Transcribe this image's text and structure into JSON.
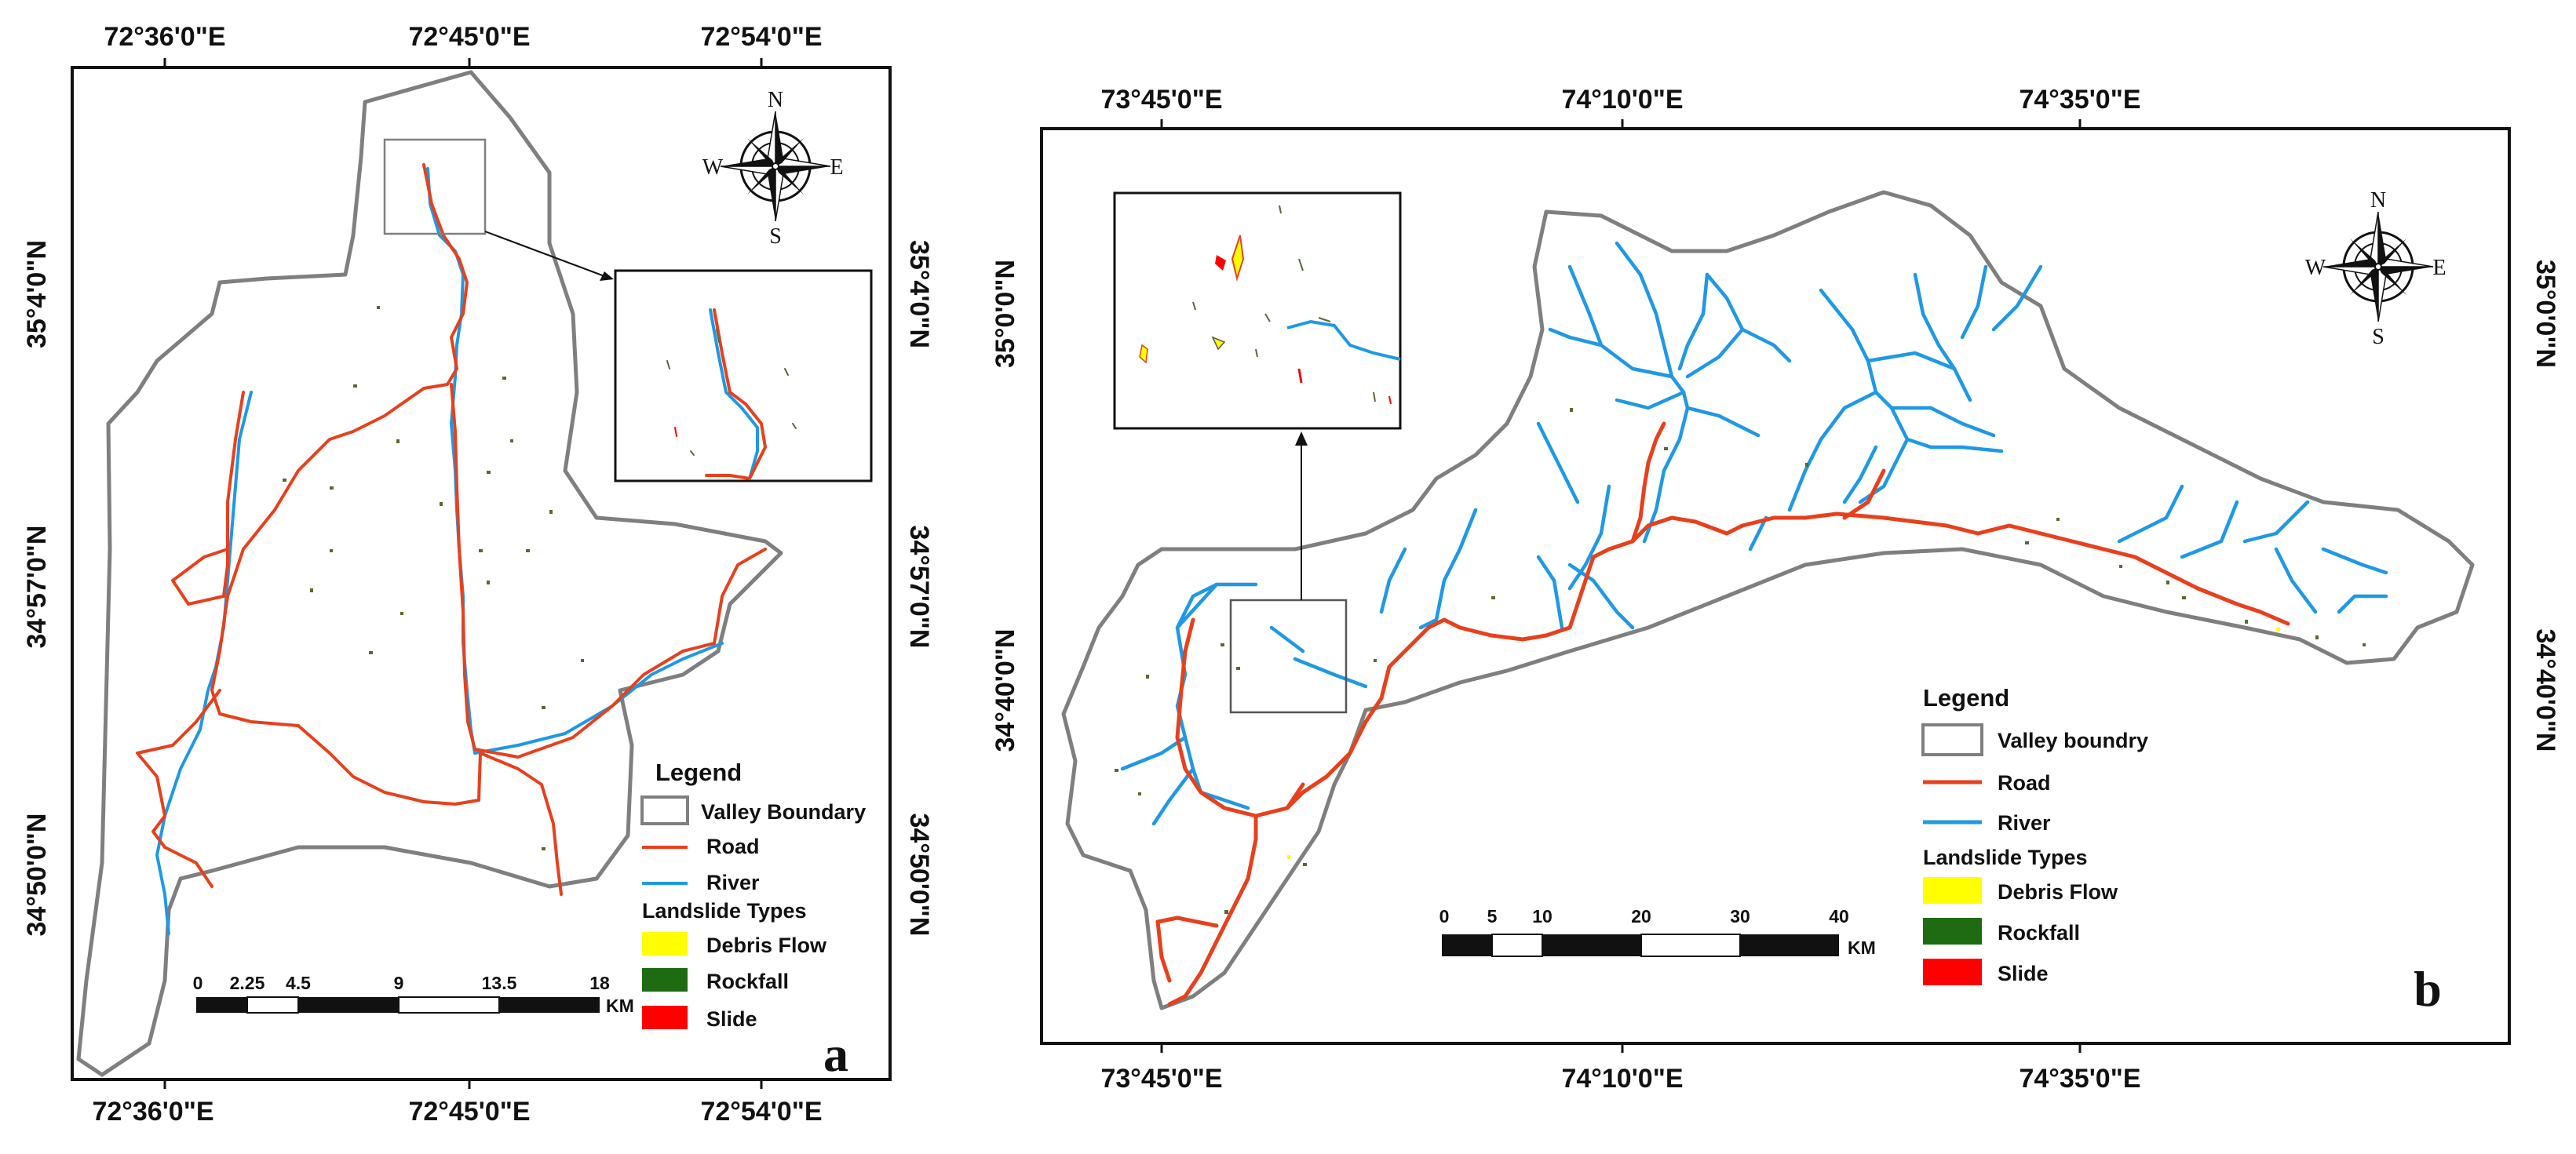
{
  "colors": {
    "valley_boundary": "#7f7f7f",
    "road": "#e8401c",
    "river": "#1f98e6",
    "debris_flow": "#ffff00",
    "rockfall": "#1e6b12",
    "slide": "#ff0000"
  },
  "panels": [
    {
      "letter": "a",
      "lon_labels": [
        "72°36'0\"E",
        "72°45'0\"E",
        "72°54'0\"E"
      ],
      "lat_labels": [
        "35°4'0\"N",
        "34°57'0\"N",
        "34°50'0\"N"
      ],
      "compass": {
        "n": "N",
        "e": "E",
        "s": "S",
        "w": "W"
      },
      "legend": {
        "title": "Legend",
        "valley": "Valley Boundary",
        "road": "Road",
        "river": "River",
        "types_title": "Landslide Types",
        "debris": "Debris Flow",
        "rockfall": "Rockfall",
        "slide": "Slide"
      },
      "scale": {
        "ticks": [
          "0",
          "2.25",
          "4.5",
          "9",
          "13.5",
          "18"
        ],
        "unit": "KM"
      }
    },
    {
      "letter": "b",
      "lon_labels": [
        "73°45'0\"E",
        "74°10'0\"E",
        "74°35'0\"E"
      ],
      "lat_labels": [
        "35°0'0\"N",
        "34°40'0\"N"
      ],
      "compass": {
        "n": "N",
        "e": "E",
        "s": "S",
        "w": "W"
      },
      "legend": {
        "title": "Legend",
        "valley": "Valley boundry",
        "road": "Road",
        "river": "River",
        "types_title": "Landslide Types",
        "debris": "Debris Flow",
        "rockfall": "Rockfall",
        "slide": "Slide"
      },
      "scale": {
        "ticks": [
          "0",
          "5",
          "10",
          "20",
          "30",
          "40"
        ],
        "unit": "KM"
      }
    }
  ]
}
